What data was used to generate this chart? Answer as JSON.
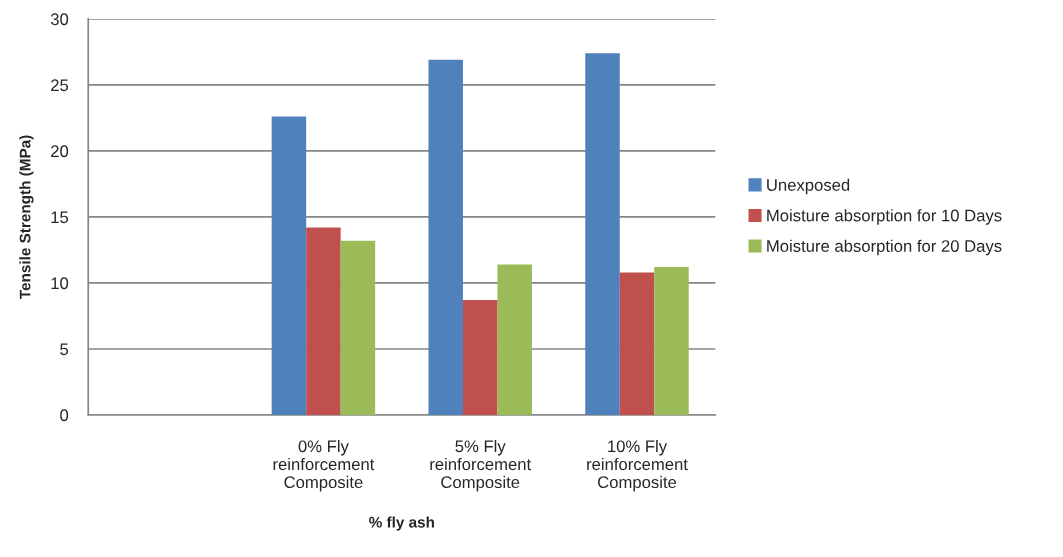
{
  "chart_data": {
    "type": "bar",
    "categories": [
      null,
      "0% Fly\nreinforcement\nComposite",
      "5% Fly\nreinforcement\nComposite",
      "10% Fly\nreinforcement\nComposite"
    ],
    "series": [
      {
        "name": "Unexposed",
        "color": "#4f81bd",
        "values": [
          null,
          22.6,
          26.9,
          27.4
        ]
      },
      {
        "name": "Moisture absorption for 10 Days",
        "color": "#c0504d",
        "values": [
          null,
          14.2,
          8.7,
          10.8
        ]
      },
      {
        "name": "Moisture absorption for 20 Days",
        "color": "#9bbb59",
        "values": [
          null,
          13.2,
          11.4,
          11.2
        ]
      }
    ],
    "xlabel": "% fly ash",
    "ylabel": "Tensile Strength (MPa)",
    "ylim": [
      0,
      30
    ],
    "yticks": [
      0,
      5,
      10,
      15,
      20,
      25,
      30
    ],
    "grid": "y",
    "legend": "right"
  }
}
